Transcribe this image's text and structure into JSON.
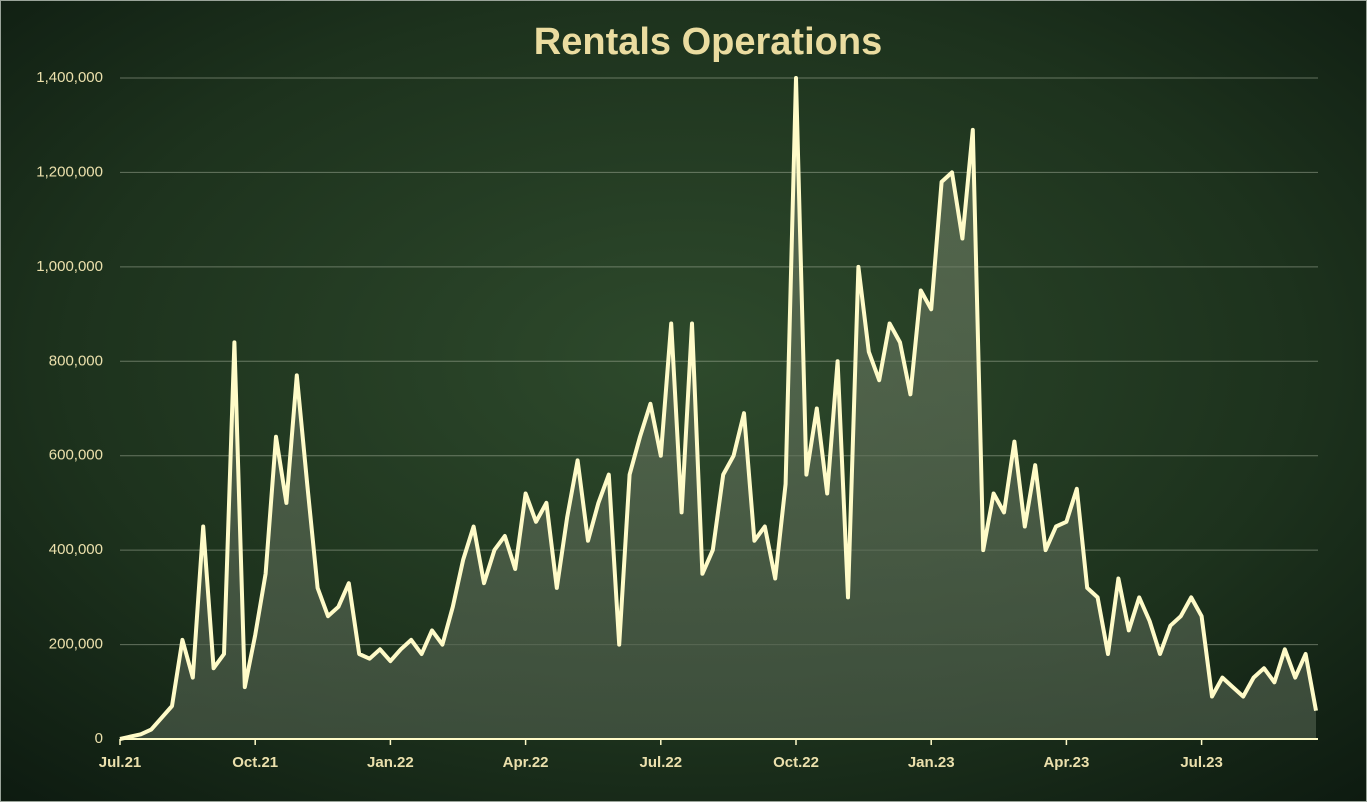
{
  "chart_data": {
    "type": "area",
    "title": "Rentals Operations",
    "categories": [
      "Jul.21",
      null,
      null,
      null,
      null,
      null,
      null,
      null,
      null,
      null,
      null,
      null,
      null,
      "Oct.21",
      null,
      null,
      null,
      null,
      null,
      null,
      null,
      null,
      null,
      null,
      null,
      null,
      "Jan.22",
      null,
      null,
      null,
      null,
      null,
      null,
      null,
      null,
      null,
      null,
      null,
      null,
      "Apr.22",
      null,
      null,
      null,
      null,
      null,
      null,
      null,
      null,
      null,
      null,
      null,
      null,
      "Jul.22",
      null,
      null,
      null,
      null,
      null,
      null,
      null,
      null,
      null,
      null,
      null,
      null,
      "Oct.22",
      null,
      null,
      null,
      null,
      null,
      null,
      null,
      null,
      null,
      null,
      null,
      null,
      "Jan.23",
      null,
      null,
      null,
      null,
      null,
      null,
      null,
      null,
      null,
      null,
      null,
      null,
      "Apr.23",
      null,
      null,
      null,
      null,
      null,
      null,
      null,
      null,
      null,
      null,
      null,
      null,
      "Jul.23",
      null,
      null,
      null,
      null,
      null,
      null,
      null,
      null,
      null,
      null,
      null
    ],
    "values": [
      0,
      5000,
      10000,
      20000,
      45000,
      70000,
      210000,
      130000,
      450000,
      150000,
      180000,
      840000,
      110000,
      220000,
      350000,
      640000,
      500000,
      770000,
      540000,
      320000,
      260000,
      280000,
      330000,
      180000,
      170000,
      190000,
      165000,
      190000,
      210000,
      180000,
      230000,
      200000,
      280000,
      380000,
      450000,
      330000,
      400000,
      430000,
      360000,
      520000,
      460000,
      500000,
      320000,
      470000,
      590000,
      420000,
      500000,
      560000,
      200000,
      560000,
      640000,
      710000,
      600000,
      880000,
      480000,
      880000,
      350000,
      400000,
      560000,
      600000,
      690000,
      420000,
      450000,
      340000,
      540000,
      1400000,
      560000,
      700000,
      520000,
      800000,
      300000,
      1000000,
      820000,
      760000,
      880000,
      840000,
      730000,
      950000,
      910000,
      1180000,
      1200000,
      1060000,
      1290000,
      400000,
      520000,
      480000,
      630000,
      450000,
      580000,
      400000,
      450000,
      460000,
      530000,
      320000,
      300000,
      180000,
      340000,
      230000,
      300000,
      250000,
      180000,
      240000,
      260000,
      300000,
      260000,
      90000,
      130000,
      110000,
      90000,
      130000,
      150000,
      120000,
      190000,
      130000,
      180000,
      60000
    ],
    "color": "#fffbc8",
    "ylim": [
      0,
      1400000
    ],
    "yticks": [
      0,
      {
        "value": 200000,
        "label": "200,000"
      },
      {
        "value": 400000,
        "label": "400,000"
      },
      {
        "value": 600000,
        "label": "600,000"
      },
      {
        "value": 800000,
        "label": "800,000"
      },
      {
        "value": 1000000,
        "label": "1,000,000"
      },
      {
        "value": 1200000,
        "label": "1,200,000"
      },
      {
        "value": 1400000,
        "label": "1,400,000"
      }
    ],
    "grid": true
  }
}
